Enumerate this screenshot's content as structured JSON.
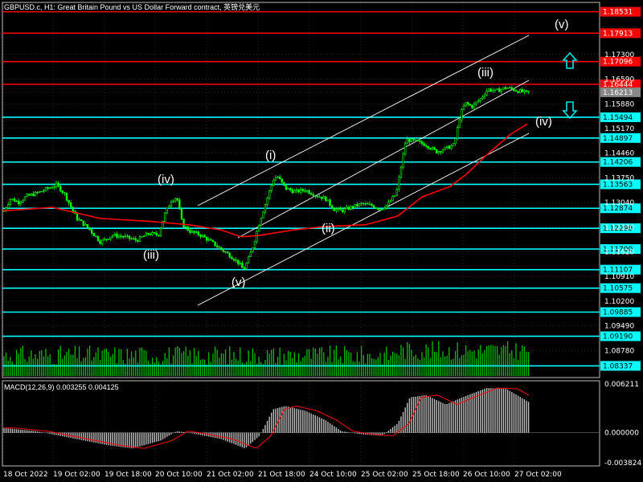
{
  "header": {
    "title": "GBPUSD.c, H1:  Great Britain Pound vs US Dollar Forward contract, 英镑兑美元"
  },
  "macd": {
    "label": "MACD(12,26,9) 0.003255 0.004125"
  },
  "colors": {
    "background": "#000000",
    "grid": "#c8c8c8",
    "candle": "#00ff00",
    "ma": "#ff0000",
    "macd_hist": "#c0c0c0",
    "macd_signal": "#ff0000",
    "resistance": "#ff0000",
    "support": "#00ffff",
    "channel": "#ffffff"
  },
  "chart_data": [
    {
      "type": "candlestick",
      "symbol": "GBPUSD.c",
      "timeframe": "H1",
      "ylim": [
        1.08,
        1.188
      ],
      "y_ticks": [
        "1.18531",
        "1.17913",
        "1.17300",
        "1.17096",
        "1.16590",
        "1.16444",
        "1.16213",
        "1.15880",
        "1.15494",
        "1.15170",
        "1.14897",
        "1.14460",
        "1.14206",
        "1.13750",
        "1.13563",
        "1.13040",
        "1.12874",
        "1.12330",
        "1.12298",
        "1.11700",
        "1.11620",
        "1.11107",
        "1.10910",
        "1.10575",
        "1.10200",
        "1.09885",
        "1.09490",
        "1.09190",
        "1.08780",
        "1.08337"
      ],
      "x_ticks": [
        "18 Oct 2022",
        "19 Oct 02:00",
        "19 Oct 18:00",
        "20 Oct 10:00",
        "21 Oct 02:00",
        "21 Oct 18:00",
        "24 Oct 10:00",
        "25 Oct 02:00",
        "25 Oct 18:00",
        "26 Oct 10:00",
        "27 Oct 02:00"
      ],
      "current_price": "1.16213",
      "close_path": [
        [
          0,
          1.128
        ],
        [
          8,
          1.1315
        ],
        [
          18,
          1.1305
        ],
        [
          28,
          1.1322
        ],
        [
          40,
          1.133
        ],
        [
          55,
          1.1345
        ],
        [
          65,
          1.1355
        ],
        [
          75,
          1.133
        ],
        [
          90,
          1.126
        ],
        [
          105,
          1.123
        ],
        [
          120,
          1.119
        ],
        [
          135,
          1.121
        ],
        [
          150,
          1.1205
        ],
        [
          165,
          1.1195
        ],
        [
          180,
          1.1215
        ],
        [
          192,
          1.121
        ],
        [
          200,
          1.127
        ],
        [
          208,
          1.131
        ],
        [
          215,
          1.132
        ],
        [
          222,
          1.124
        ],
        [
          232,
          1.122
        ],
        [
          245,
          1.121
        ],
        [
          258,
          1.119
        ],
        [
          270,
          1.117
        ],
        [
          282,
          1.115
        ],
        [
          292,
          1.113
        ],
        [
          298,
          1.111
        ],
        [
          303,
          1.1135
        ],
        [
          310,
          1.118
        ],
        [
          318,
          1.125
        ],
        [
          328,
          1.132
        ],
        [
          335,
          1.137
        ],
        [
          340,
          1.138
        ],
        [
          350,
          1.1345
        ],
        [
          362,
          1.1335
        ],
        [
          375,
          1.134
        ],
        [
          388,
          1.1325
        ],
        [
          400,
          1.1315
        ],
        [
          410,
          1.1285
        ],
        [
          420,
          1.128
        ],
        [
          432,
          1.129
        ],
        [
          445,
          1.13
        ],
        [
          458,
          1.1295
        ],
        [
          468,
          1.1285
        ],
        [
          478,
          1.13
        ],
        [
          488,
          1.133
        ],
        [
          495,
          1.142
        ],
        [
          500,
          1.1485
        ],
        [
          512,
          1.148
        ],
        [
          525,
          1.147
        ],
        [
          538,
          1.145
        ],
        [
          550,
          1.146
        ],
        [
          560,
          1.147
        ],
        [
          568,
          1.156
        ],
        [
          574,
          1.159
        ],
        [
          582,
          1.158
        ],
        [
          592,
          1.16
        ],
        [
          602,
          1.163
        ],
        [
          612,
          1.1625
        ],
        [
          625,
          1.1635
        ],
        [
          640,
          1.1625
        ],
        [
          650,
          1.162
        ],
        [
          658,
          1.1625
        ]
      ],
      "moving_average": [
        [
          0,
          1.128
        ],
        [
          60,
          1.129
        ],
        [
          120,
          1.1258
        ],
        [
          180,
          1.125
        ],
        [
          230,
          1.124
        ],
        [
          270,
          1.1225
        ],
        [
          295,
          1.1205
        ],
        [
          320,
          1.121
        ],
        [
          360,
          1.1225
        ],
        [
          400,
          1.1235
        ],
        [
          450,
          1.124
        ],
        [
          490,
          1.1265
        ],
        [
          520,
          1.132
        ],
        [
          555,
          1.135
        ],
        [
          575,
          1.1385
        ],
        [
          600,
          1.144
        ],
        [
          630,
          1.15
        ],
        [
          658,
          1.154
        ]
      ],
      "horizontal_levels": [
        {
          "price": "1.18531",
          "kind": "resistance"
        },
        {
          "price": "1.17913",
          "kind": "resistance"
        },
        {
          "price": "1.17096",
          "kind": "resistance"
        },
        {
          "price": "1.16444",
          "kind": "resistance"
        },
        {
          "price": "1.15494",
          "kind": "support"
        },
        {
          "price": "1.14897",
          "kind": "support"
        },
        {
          "price": "1.14206",
          "kind": "support"
        },
        {
          "price": "1.13563",
          "kind": "support"
        },
        {
          "price": "1.12874",
          "kind": "support"
        },
        {
          "price": "1.12298",
          "kind": "support"
        },
        {
          "price": "1.11700",
          "kind": "support"
        },
        {
          "price": "1.11107",
          "kind": "support"
        },
        {
          "price": "1.10575",
          "kind": "support"
        },
        {
          "price": "1.09885",
          "kind": "support"
        },
        {
          "price": "1.09190",
          "kind": "support"
        },
        {
          "price": "1.08337",
          "kind": "support"
        }
      ],
      "wave_labels": [
        "(iv)",
        "(iii)",
        "(v)",
        "(i)",
        "(ii)",
        "(iii)",
        "(iv)",
        "(v)"
      ]
    },
    {
      "type": "histogram",
      "indicator": "MACD(12,26,9)",
      "ylim": [
        -0.003824,
        0.006211
      ],
      "y_ticks": [
        "0.006211",
        "0.000000",
        "-0.003824"
      ]
    }
  ]
}
